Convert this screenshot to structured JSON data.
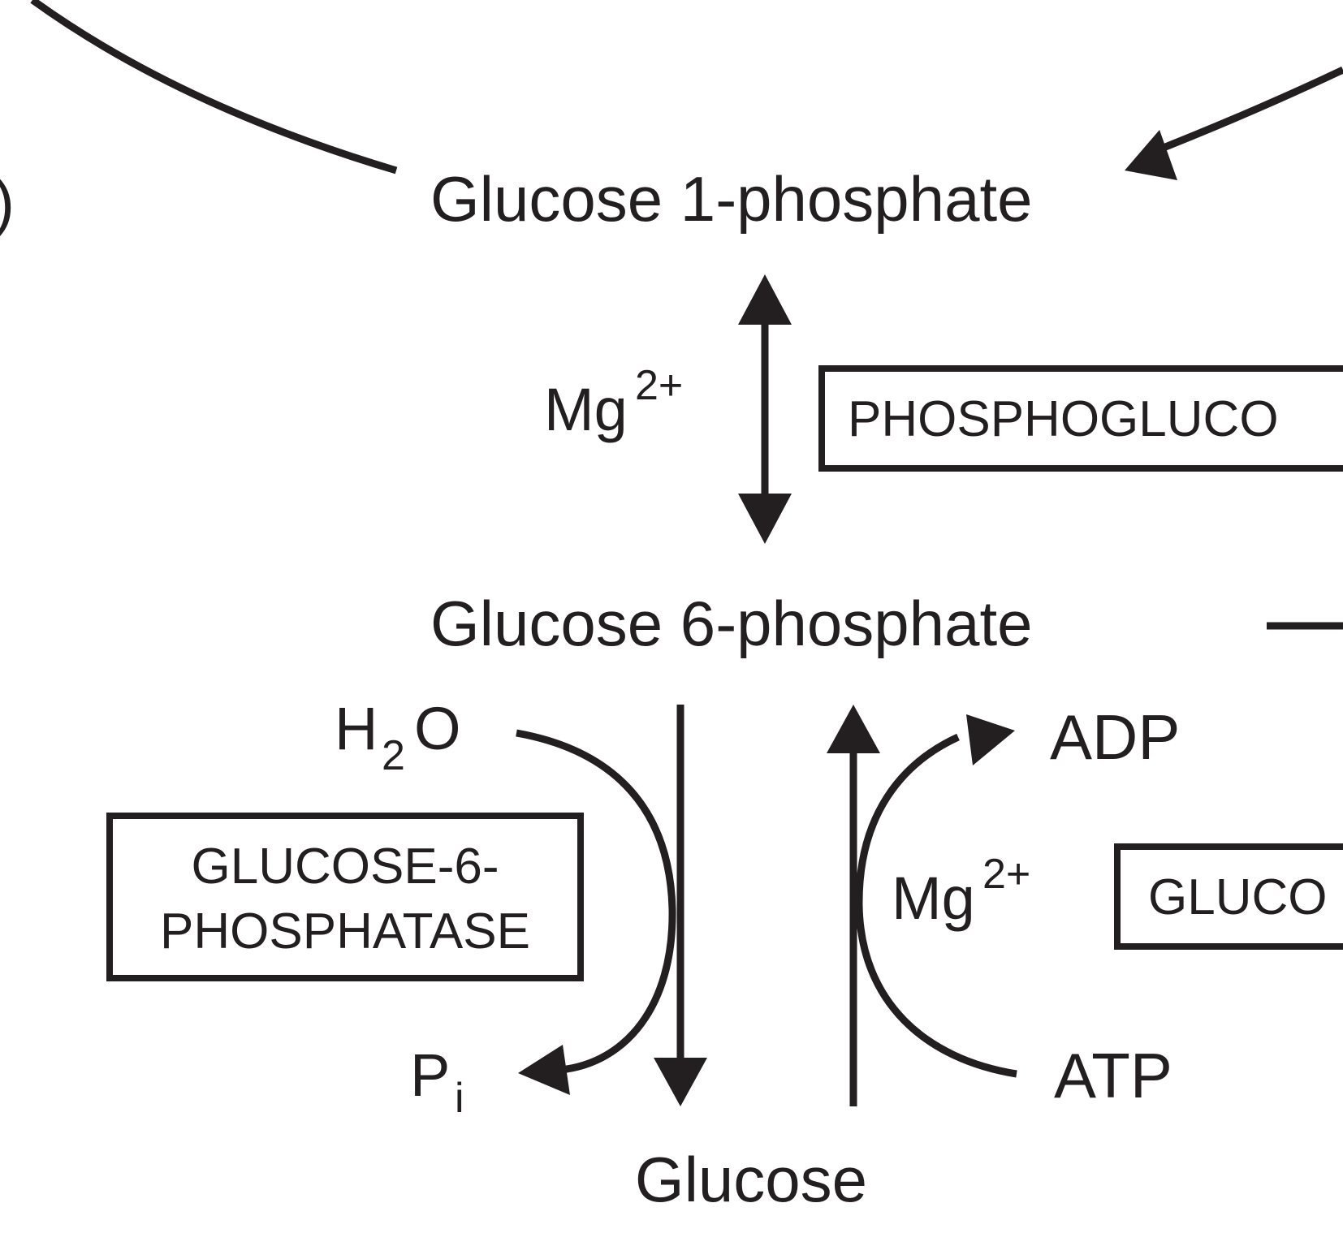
{
  "labels": {
    "glucose_1_phosphate": "Glucose 1-phosphate",
    "glucose_6_phosphate": "Glucose 6-phosphate",
    "glucose": "Glucose",
    "partial_paren": ")",
    "mg_top": "Mg",
    "mg_top_sup": "2+",
    "mg_right": "Mg",
    "mg_right_sup": "2+",
    "water_h": "H",
    "water_sub": "2",
    "water_o": "O",
    "pi_p": "P",
    "pi_sub": "i",
    "adp": "ADP",
    "atp": "ATP"
  },
  "enzymes": {
    "phosphoglucomutase": "PHOSPHOGLUCO",
    "glucose_6_phosphatase_line1": "GLUCOSE-6-",
    "glucose_6_phosphatase_line2": "PHOSPHATASE",
    "glucokinase": "GLUCO"
  },
  "colors": {
    "ink": "#231f20",
    "background": "#ffffff"
  }
}
